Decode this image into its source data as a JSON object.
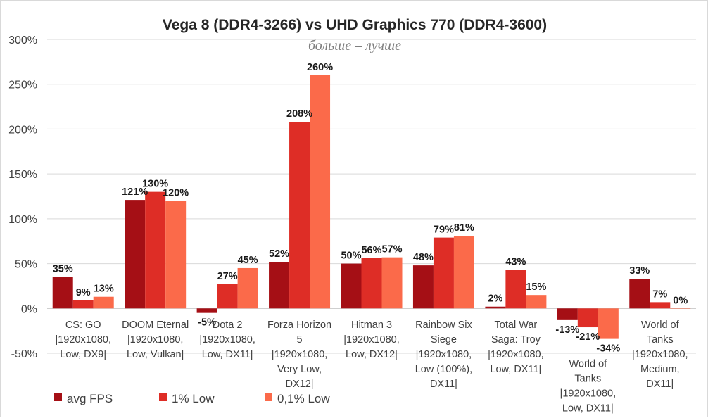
{
  "chart_data": {
    "type": "bar",
    "title": "Vega 8 (DDR4-3266) vs UHD Graphics 770 (DDR4-3600)",
    "subtitle": "больше – лучше",
    "ylim": [
      -50,
      300
    ],
    "y_ticks": [
      -50,
      0,
      50,
      100,
      150,
      200,
      250,
      300
    ],
    "y_tick_labels": [
      "-50%",
      "0%",
      "50%",
      "100%",
      "150%",
      "200%",
      "250%",
      "300%"
    ],
    "grid": true,
    "legend_position": "bottom-left",
    "categories": [
      "CS: GO |1920x1080, Low, DX9|",
      "DOOM Eternal |1920x1080, Low, Vulkan|",
      "Dota 2 |1920x1080, Low, DX11|",
      "Forza Horizon 5 |1920x1080, Very Low, DX12|",
      "Hitman 3 |1920x1080, Low, DX12|",
      "Rainbow Six Siege |1920x1080, Low (100%), DX11|",
      "Total War Saga: Troy |1920x1080, Low, DX11|",
      "World of Tanks |1920x1080, Low, DX11|",
      "World of Tanks |1920x1080, Medium, DX11|"
    ],
    "category_lines": [
      [
        "CS: GO",
        "|1920x1080,",
        "Low, DX9|"
      ],
      [
        "DOOM Eternal",
        "|1920x1080,",
        "Low, Vulkan|"
      ],
      [
        "Dota 2",
        "|1920x1080,",
        "Low, DX11|"
      ],
      [
        "Forza Horizon",
        "5",
        "|1920x1080,",
        "Very Low,",
        "DX12|"
      ],
      [
        "Hitman 3",
        "|1920x1080,",
        "Low, DX12|"
      ],
      [
        "Rainbow Six",
        "Siege",
        "|1920x1080,",
        "Low (100%),",
        "DX11|"
      ],
      [
        "Total War",
        "Saga: Troy",
        "|1920x1080,",
        "Low, DX11|"
      ],
      [
        "World of",
        "Tanks",
        "|1920x1080,",
        "Low, DX11|"
      ],
      [
        "World of",
        "Tanks",
        "|1920x1080,",
        "Medium,",
        "DX11|"
      ]
    ],
    "series": [
      {
        "name": "avg FPS",
        "color": "#a50f15",
        "values": [
          35,
          121,
          -5,
          52,
          50,
          48,
          2,
          -13,
          33
        ]
      },
      {
        "name": "1% Low",
        "color": "#de2d26",
        "values": [
          9,
          130,
          27,
          208,
          56,
          79,
          43,
          -21,
          7
        ]
      },
      {
        "name": "0,1% Low",
        "color": "#fb6a4a",
        "values": [
          13,
          120,
          45,
          260,
          57,
          81,
          15,
          -34,
          0
        ]
      }
    ],
    "value_suffix": "%"
  }
}
